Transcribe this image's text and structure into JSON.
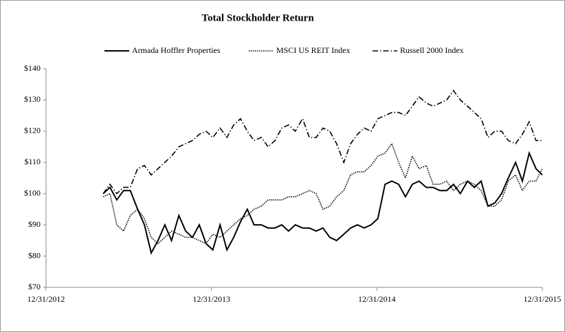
{
  "chart_data": {
    "type": "line",
    "title": "Total Stockholder Return",
    "x": [
      "2013-05-06",
      "2013-05-21",
      "2013-06-05",
      "2013-06-20",
      "2013-07-05",
      "2013-07-21",
      "2013-08-05",
      "2013-08-20",
      "2013-09-04",
      "2013-09-19",
      "2013-10-04",
      "2013-10-20",
      "2013-11-04",
      "2013-11-19",
      "2013-12-04",
      "2013-12-19",
      "2014-01-03",
      "2014-01-19",
      "2014-02-03",
      "2014-02-18",
      "2014-03-05",
      "2014-03-20",
      "2014-04-04",
      "2014-04-20",
      "2014-05-05",
      "2014-05-20",
      "2014-06-04",
      "2014-06-19",
      "2014-07-04",
      "2014-07-20",
      "2014-08-04",
      "2014-08-19",
      "2014-09-03",
      "2014-09-18",
      "2014-10-03",
      "2014-10-19",
      "2014-11-03",
      "2014-11-18",
      "2014-12-03",
      "2014-12-18",
      "2015-01-02",
      "2015-01-18",
      "2015-02-02",
      "2015-02-17",
      "2015-03-04",
      "2015-03-19",
      "2015-04-03",
      "2015-04-19",
      "2015-05-04",
      "2015-05-19",
      "2015-06-03",
      "2015-06-18",
      "2015-07-03",
      "2015-07-19",
      "2015-08-03",
      "2015-08-18",
      "2015-09-02",
      "2015-09-17",
      "2015-10-02",
      "2015-10-17",
      "2015-11-02",
      "2015-11-17",
      "2015-12-02",
      "2015-12-17",
      "2015-12-31"
    ],
    "series": [
      {
        "name": "Armada Hoffler Properties",
        "color": "#000000",
        "dash": "solid",
        "values": [
          100,
          102,
          98,
          101,
          101,
          95,
          90,
          81,
          85,
          90,
          85,
          93,
          88,
          86,
          90,
          84,
          82,
          90,
          82,
          86,
          91,
          95,
          90,
          90,
          89,
          89,
          90,
          88,
          90,
          89,
          89,
          88,
          89,
          86,
          85,
          87,
          89,
          90,
          89,
          90,
          92,
          103,
          104,
          103,
          99,
          103,
          104,
          102,
          102,
          101,
          101,
          103,
          100,
          104,
          102,
          104,
          96,
          97,
          100,
          105,
          110,
          104,
          113,
          108,
          106
        ]
      },
      {
        "name": "MSCI US REIT Index",
        "color": "#000000",
        "dash": "dotted",
        "values": [
          99,
          100,
          90,
          88,
          93,
          95,
          92,
          86,
          84,
          86,
          88,
          87,
          86,
          86,
          85,
          84,
          87,
          86,
          88,
          90,
          92,
          93,
          95,
          96,
          98,
          98,
          98,
          99,
          99,
          100,
          101,
          100,
          95,
          96,
          99,
          101,
          106,
          107,
          107,
          109,
          112,
          113,
          116,
          110,
          105,
          112,
          108,
          109,
          103,
          103,
          104,
          101,
          103,
          104,
          103,
          101,
          96,
          96,
          98,
          104,
          106,
          101,
          104,
          104,
          108
        ]
      },
      {
        "name": "Russell 2000 Index",
        "color": "#000000",
        "dash": "dashdot",
        "values": [
          100,
          103,
          100,
          102,
          102,
          108,
          109,
          106,
          108,
          110,
          112,
          115,
          116,
          117,
          119,
          120,
          118,
          121,
          118,
          122,
          124,
          120,
          117,
          118,
          115,
          117,
          121,
          122,
          120,
          124,
          118,
          118,
          121,
          120,
          116,
          110,
          116,
          119,
          121,
          120,
          124,
          125,
          126,
          126,
          125,
          128,
          131,
          129,
          128,
          129,
          130,
          133,
          130,
          128,
          126,
          124,
          118,
          120,
          120,
          117,
          116,
          119,
          123,
          117,
          117
        ]
      }
    ],
    "xlim": [
      "2012-12-31",
      "2015-12-31"
    ],
    "xticks": [
      {
        "value": "2012-12-31",
        "label": "12/31/2012"
      },
      {
        "value": "2013-12-31",
        "label": "12/31/2013"
      },
      {
        "value": "2014-12-31",
        "label": "12/31/2014"
      },
      {
        "value": "2015-12-31",
        "label": "12/31/2015"
      }
    ],
    "ylim": [
      70,
      140
    ],
    "yticks": [
      {
        "value": 70,
        "label": "$70"
      },
      {
        "value": 80,
        "label": "$80"
      },
      {
        "value": 90,
        "label": "$90"
      },
      {
        "value": 100,
        "label": "$100"
      },
      {
        "value": 110,
        "label": "$110"
      },
      {
        "value": 120,
        "label": "$120"
      },
      {
        "value": 130,
        "label": "$130"
      },
      {
        "value": 140,
        "label": "$140"
      }
    ],
    "legend": "top"
  }
}
